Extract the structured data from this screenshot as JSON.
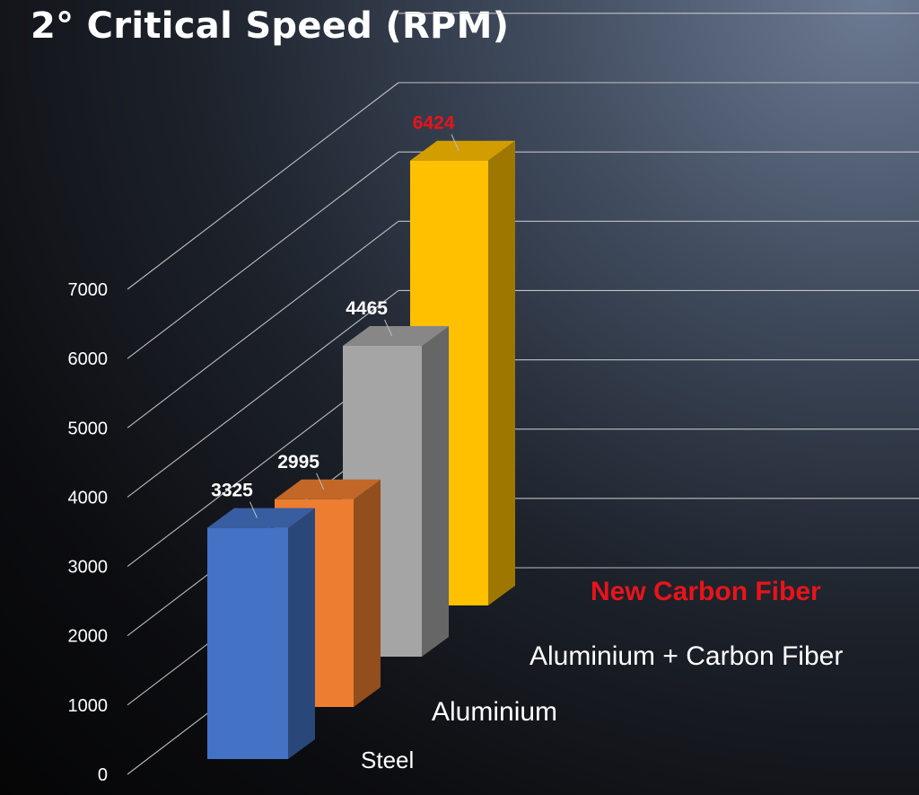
{
  "chart_data": {
    "type": "bar",
    "title": "2° Critical Speed (RPM)",
    "xlabel": "",
    "ylabel": "",
    "ylim": [
      0,
      7000
    ],
    "y_ticks": [
      "0",
      "1000",
      "2000",
      "3000",
      "4000",
      "5000",
      "6000",
      "7000"
    ],
    "grid": true,
    "projection": "3d",
    "categories": [
      "Steel",
      "Aluminium",
      "Aluminium + Carbon Fiber",
      "New Carbon Fiber"
    ],
    "values": [
      3325,
      2995,
      4465,
      6424
    ],
    "data_labels": [
      "3325",
      "2995",
      "4465",
      "6424"
    ],
    "colors": [
      "#4472c4",
      "#ed7d31",
      "#a5a5a5",
      "#ffc000"
    ],
    "label_colors": [
      "#ffffff",
      "#ffffff",
      "#ffffff",
      "#e8141a"
    ],
    "category_label_colors": [
      "#ffffff",
      "#ffffff",
      "#ffffff",
      "#e8141a"
    ]
  }
}
